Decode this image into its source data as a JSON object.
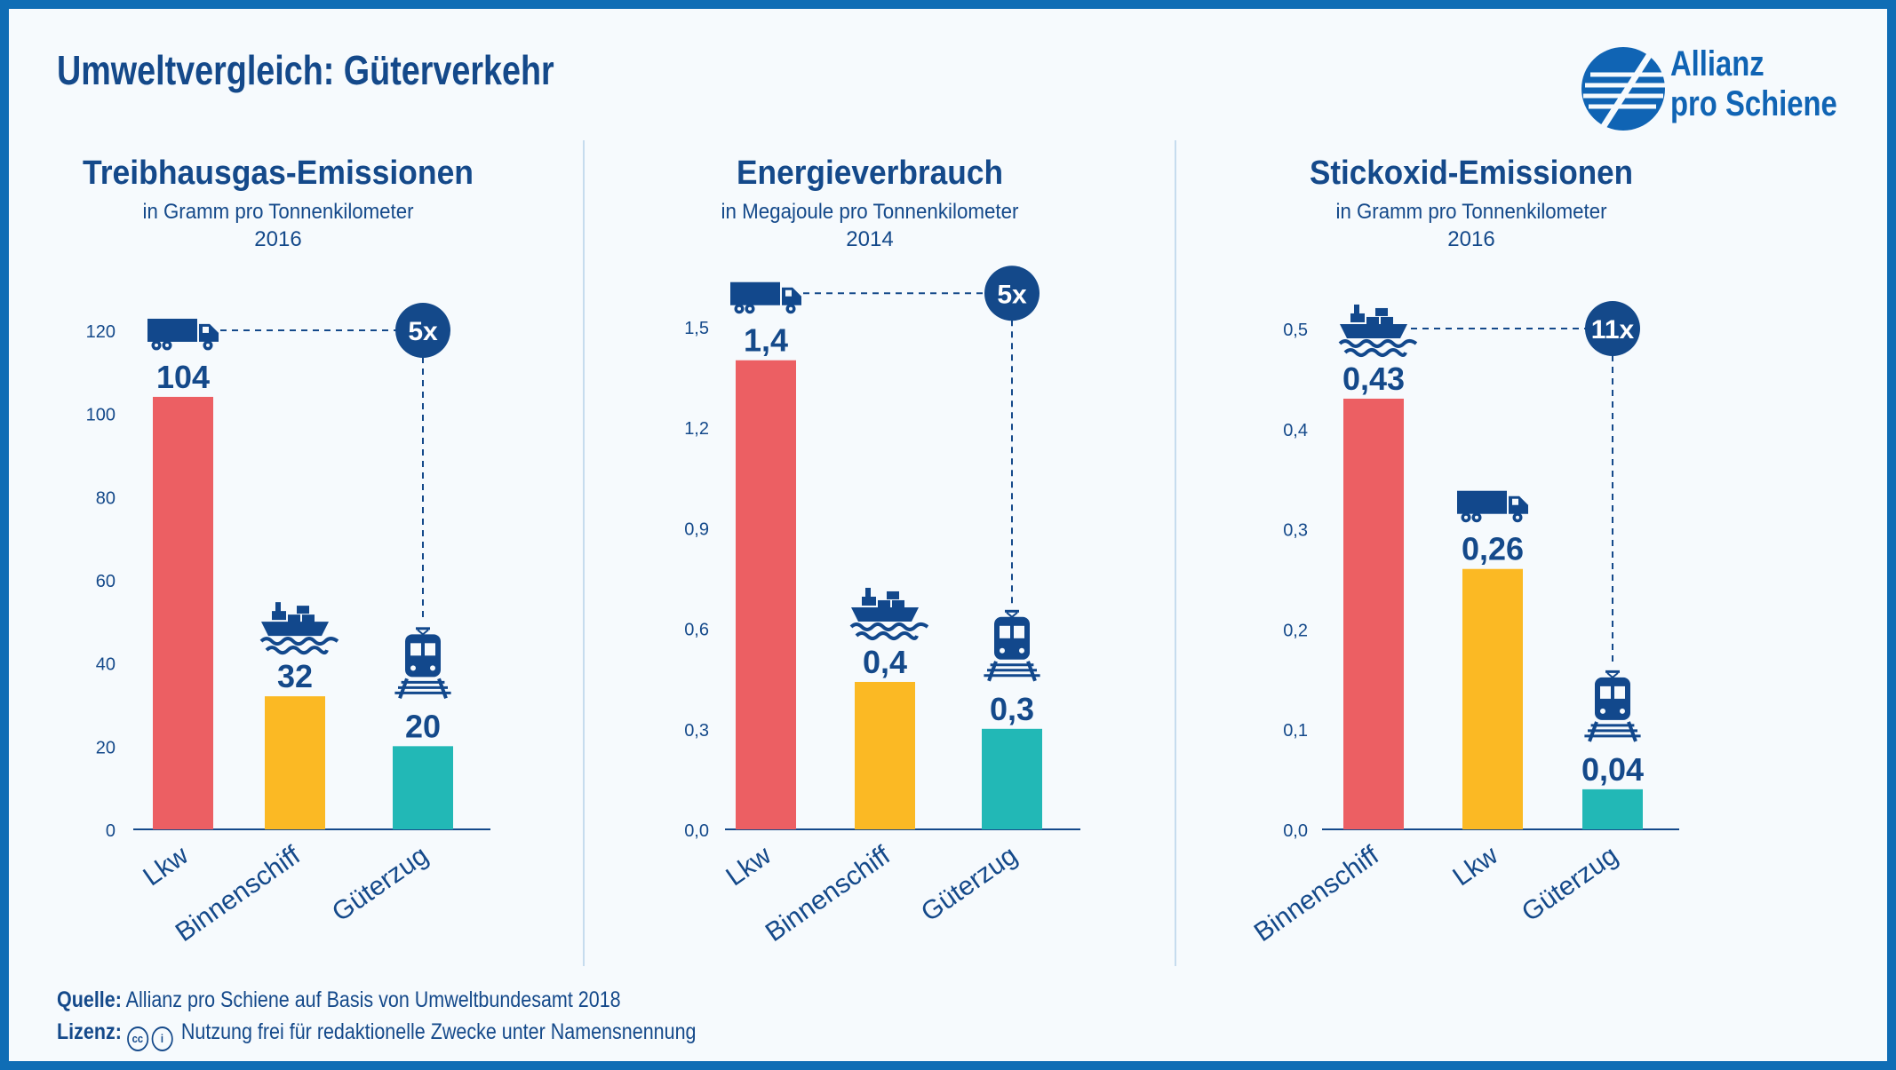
{
  "title": "Umweltvergleich: Güterverkehr",
  "logo": {
    "line1": "Allianz",
    "line2": "pro Schiene"
  },
  "colors": {
    "frame": "#0f6db5",
    "title": "#14498a",
    "red": "#ec5f63",
    "yellow": "#fbb924",
    "teal": "#22b8b6",
    "navy": "#14498a",
    "icon": "#12488c"
  },
  "chart_data": [
    {
      "type": "bar",
      "title": "Treibhausgas-Emissionen",
      "subtitle": "in Gramm pro Tonnenkilometer",
      "year": "2016",
      "categories": [
        "Lkw",
        "Binnenschiff",
        "Güterzug"
      ],
      "values": [
        104,
        32,
        20
      ],
      "value_labels": [
        "104",
        "32",
        "20"
      ],
      "icons": [
        "truck-icon",
        "ship-icon",
        "train-icon"
      ],
      "bar_colors": [
        "#ec5f63",
        "#fbb924",
        "#22b8b6"
      ],
      "ylim": [
        0,
        120
      ],
      "yticks": [
        0,
        20,
        40,
        60,
        80,
        100,
        120
      ],
      "ytick_labels": [
        "0",
        "20",
        "40",
        "60",
        "80",
        "100",
        "120"
      ],
      "comparison": {
        "label": "5x",
        "from": 0,
        "to": 2,
        "level": 120
      }
    },
    {
      "type": "bar",
      "title": "Energieverbrauch",
      "subtitle": "in Megajoule pro Tonnenkilometer",
      "year": "2014",
      "categories": [
        "Lkw",
        "Binnenschiff",
        "Güterzug"
      ],
      "values": [
        1.4,
        0.44,
        0.3
      ],
      "value_labels": [
        "1,4",
        "0,4",
        "0,3"
      ],
      "icons": [
        "truck-icon",
        "ship-icon",
        "train-icon"
      ],
      "bar_colors": [
        "#ec5f63",
        "#fbb924",
        "#22b8b6"
      ],
      "ylim": [
        0,
        1.5
      ],
      "yticks": [
        0,
        0.3,
        0.6,
        0.9,
        1.2,
        1.5
      ],
      "ytick_labels": [
        "0,0",
        "0,3",
        "0,6",
        "0,9",
        "1,2",
        "1,5"
      ],
      "comparison": {
        "label": "5x",
        "from": 0,
        "to": 2,
        "level": 1.6
      }
    },
    {
      "type": "bar",
      "title": "Stickoxid-Emissionen",
      "subtitle": "in Gramm pro Tonnenkilometer",
      "year": "2016",
      "categories": [
        "Binnenschiff",
        "Lkw",
        "Güterzug"
      ],
      "values": [
        0.43,
        0.26,
        0.04
      ],
      "value_labels": [
        "0,43",
        "0,26",
        "0,04"
      ],
      "icons": [
        "ship-icon",
        "truck-icon",
        "train-icon"
      ],
      "bar_colors": [
        "#ec5f63",
        "#fbb924",
        "#22b8b6"
      ],
      "ylim": [
        0,
        0.5
      ],
      "yticks": [
        0,
        0.1,
        0.2,
        0.3,
        0.4,
        0.5
      ],
      "ytick_labels": [
        "0,0",
        "0,1",
        "0,2",
        "0,3",
        "0,4",
        "0,5"
      ],
      "comparison": {
        "label": "11x",
        "from": 0,
        "to": 2,
        "level": 0.5
      }
    }
  ],
  "footer": {
    "source_label": "Quelle:",
    "source_text": "Allianz pro Schiene auf Basis von Umweltbundesamt 2018",
    "license_label": "Lizenz:",
    "license_text": "Nutzung frei für redaktionelle Zwecke unter Namensnennung"
  }
}
